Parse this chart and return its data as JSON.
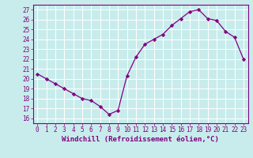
{
  "x": [
    0,
    1,
    2,
    3,
    4,
    5,
    6,
    7,
    8,
    9,
    10,
    11,
    12,
    13,
    14,
    15,
    16,
    17,
    18,
    19,
    20,
    21,
    22,
    23
  ],
  "y": [
    20.5,
    20.0,
    19.5,
    19.0,
    18.5,
    18.0,
    17.8,
    17.2,
    16.4,
    16.8,
    20.3,
    22.2,
    23.5,
    24.0,
    24.5,
    25.4,
    26.1,
    26.8,
    27.0,
    26.1,
    25.9,
    24.8,
    24.2,
    22.0
  ],
  "line_color": "#800080",
  "marker": "D",
  "marker_size": 2.2,
  "bg_color": "#c8ecec",
  "grid_color": "#ffffff",
  "xlabel": "Windchill (Refroidissement éolien,°C)",
  "xlim": [
    -0.5,
    23.5
  ],
  "ylim": [
    15.5,
    27.5
  ],
  "yticks": [
    16,
    17,
    18,
    19,
    20,
    21,
    22,
    23,
    24,
    25,
    26,
    27
  ],
  "xticks": [
    0,
    1,
    2,
    3,
    4,
    5,
    6,
    7,
    8,
    9,
    10,
    11,
    12,
    13,
    14,
    15,
    16,
    17,
    18,
    19,
    20,
    21,
    22,
    23
  ],
  "tick_color": "#800080",
  "tick_fontsize": 5.5,
  "xlabel_fontsize": 6.5,
  "axis_color": "#800080",
  "linewidth": 0.9
}
